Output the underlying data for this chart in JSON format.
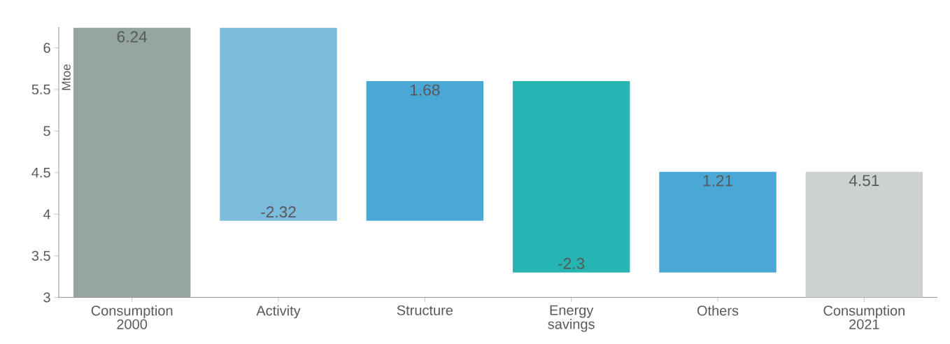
{
  "chart_data": {
    "type": "bar",
    "ylabel": "Mtoe",
    "categories": [
      "Consumption 2000",
      "Activity",
      "Structure",
      "Energy savings",
      "Others",
      "Consumption 2021"
    ],
    "values": [
      6.24,
      -2.32,
      1.68,
      -2.3,
      1.21,
      4.51
    ],
    "base": [
      null,
      6.24,
      3.92,
      5.6,
      3.3,
      null
    ],
    "colors": [
      "#94a59d",
      "#7bbcdd",
      "#4aa8d6",
      "#26b5b1",
      "#4aa8d6",
      "#cbd2cf"
    ],
    "ylim": [
      3,
      6.25
    ],
    "yticks": [
      3,
      3.5,
      4,
      4.5,
      5,
      5.5,
      6
    ],
    "data_labels": true
  }
}
